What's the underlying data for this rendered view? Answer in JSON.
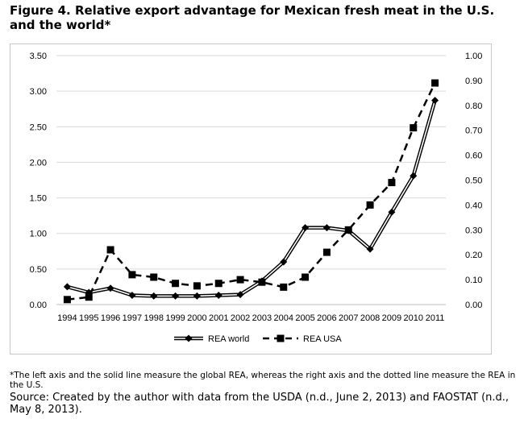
{
  "figure": {
    "title": "Figure 4. Relative export advantage for Mexican fresh meat in the U.S. and the world*",
    "footnote": "*The left axis and the solid line measure the global REA, whereas the right axis and the dotted line measure the REA in the U.S.",
    "source": "Source: Created by the author with data from the USDA (n.d., June 2, 2013) and FAOSTAT (n.d., May 8, 2013)."
  },
  "chart_data": {
    "type": "line",
    "title": "",
    "xlabel": "",
    "ylabel": "",
    "categories": [
      "1994",
      "1995",
      "1996",
      "1997",
      "1998",
      "1999",
      "2000",
      "2001",
      "2002",
      "2003",
      "2004",
      "2005",
      "2006",
      "2007",
      "2008",
      "2009",
      "2010",
      "2011"
    ],
    "y_left": {
      "ylim": [
        0,
        3.5
      ],
      "ticks": [
        "0.00",
        "0.50",
        "1.00",
        "1.50",
        "2.00",
        "2.50",
        "3.00",
        "3.50"
      ]
    },
    "y_right": {
      "ylim": [
        0,
        1.0
      ],
      "ticks": [
        "0.00",
        "0.10",
        "0.20",
        "0.30",
        "0.40",
        "0.50",
        "0.60",
        "0.70",
        "0.80",
        "0.90",
        "1.00"
      ]
    },
    "series": [
      {
        "name": "REA world",
        "axis": "left",
        "style": "double-solid",
        "marker": "diamond",
        "values": [
          0.25,
          0.17,
          0.23,
          0.13,
          0.12,
          0.12,
          0.12,
          0.13,
          0.14,
          0.33,
          0.6,
          1.08,
          1.08,
          1.04,
          0.78,
          1.3,
          1.81,
          2.87
        ]
      },
      {
        "name": "REA USA",
        "axis": "right",
        "style": "dashed",
        "marker": "square",
        "values": [
          0.02,
          0.03,
          0.22,
          0.12,
          0.11,
          0.085,
          0.075,
          0.085,
          0.1,
          0.09,
          0.07,
          0.11,
          0.21,
          0.3,
          0.4,
          0.49,
          0.71,
          0.89
        ]
      }
    ],
    "grid": "horizontal",
    "legend": "bottom-center"
  }
}
